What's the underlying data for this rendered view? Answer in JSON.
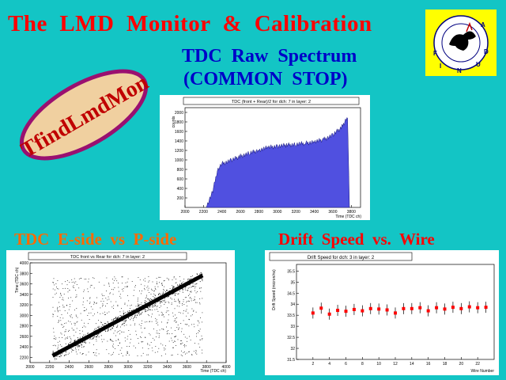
{
  "header": {
    "title": "The  LMD  Monitor  &  Calibration",
    "subtitle_line1": "TDC  Raw  Spectrum",
    "subtitle_line2": "(COMMON  STOP)"
  },
  "badge": {
    "text": "TfindLmdMon"
  },
  "logo": {
    "letters": [
      "F",
      "I",
      "N",
      "U",
      "D",
      "A"
    ]
  },
  "labels": {
    "left": "TDC  E-side  vs  P-side",
    "right": "Drift  Speed  vs.  Wire"
  },
  "colors": {
    "background": "#13c5c5",
    "title": "#ff0000",
    "subtitle": "#0000c8",
    "left_label": "#ff6a00",
    "histogram_fill": "#5050e0",
    "marker": "#ff0000"
  },
  "charts": {
    "raw": {
      "title": "TDC (front + Rear)/2 for dch: 7 in layer: 2",
      "ylabel": "counts",
      "xlabel": "Time (TDC ch)",
      "x_ticks": [
        "2000",
        "2200",
        "2400",
        "2600",
        "2800",
        "3000",
        "3200",
        "3400",
        "3600",
        "3800"
      ],
      "y_ticks": [
        "200",
        "400",
        "600",
        "800",
        "1000",
        "1200",
        "1400",
        "1600",
        "1800",
        "2000"
      ]
    },
    "scatter": {
      "title": "TDC front vs Rear for dch: 7 in layer: 2",
      "ylabel": "Time (TDC ch)",
      "xlabel": "Time (TDC ch)",
      "x_ticks": [
        "2000",
        "2200",
        "2400",
        "2600",
        "2800",
        "3000",
        "3200",
        "3400",
        "3600",
        "3800",
        "4000"
      ],
      "y_ticks": [
        "2200",
        "2400",
        "2600",
        "2800",
        "3000",
        "3200",
        "3400",
        "3600",
        "3800",
        "4000"
      ]
    },
    "drift": {
      "title": "Drift Speed for dch: 3 in layer: 2",
      "ylabel": "Drift Speed (micron/ns)",
      "xlabel": "Wire Number",
      "x_ticks": [
        "2",
        "4",
        "6",
        "8",
        "10",
        "12",
        "14",
        "16",
        "18",
        "20",
        "22"
      ],
      "y_ticks": [
        "31.5",
        "32",
        "32.5",
        "33",
        "33.5",
        "34",
        "34.5",
        "35",
        "35.5"
      ]
    }
  },
  "chart_data": [
    {
      "type": "area",
      "title": "TDC (front + Rear)/2 for dch: 7 in layer: 2",
      "xlabel": "Time (TDC ch)",
      "ylabel": "counts",
      "xlim": [
        2000,
        3900
      ],
      "ylim": [
        0,
        2100
      ],
      "x": [
        2230,
        2300,
        2350,
        2400,
        2500,
        2600,
        2700,
        2800,
        2900,
        3000,
        3100,
        3200,
        3300,
        3400,
        3500,
        3600,
        3700,
        3760,
        3780
      ],
      "values": [
        0,
        330,
        780,
        920,
        990,
        1080,
        1140,
        1210,
        1260,
        1290,
        1310,
        1330,
        1350,
        1380,
        1430,
        1520,
        1700,
        1920,
        0
      ]
    },
    {
      "type": "scatter",
      "title": "TDC front vs Rear for dch: 7 in layer: 2",
      "xlabel": "Time (TDC ch)",
      "ylabel": "Time (TDC ch)",
      "xlim": [
        2000,
        4000
      ],
      "ylim": [
        2100,
        4000
      ],
      "band": {
        "x": [
          2230,
          3760
        ],
        "y": [
          2230,
          3760
        ]
      }
    },
    {
      "type": "scatter",
      "title": "Drift Speed for dch: 3 in layer: 2",
      "xlabel": "Wire Number",
      "ylabel": "Drift Speed (micron/ns)",
      "xlim": [
        0,
        24
      ],
      "ylim": [
        31.5,
        35.8
      ],
      "x": [
        2,
        3,
        4,
        5,
        6,
        7,
        8,
        9,
        10,
        11,
        12,
        13,
        14,
        15,
        16,
        17,
        18,
        19,
        20,
        21,
        22,
        23
      ],
      "values": [
        33.6,
        33.82,
        33.55,
        33.72,
        33.68,
        33.76,
        33.7,
        33.8,
        33.78,
        33.74,
        33.6,
        33.8,
        33.8,
        33.84,
        33.7,
        33.84,
        33.78,
        33.86,
        33.8,
        33.88,
        33.84,
        33.86
      ]
    }
  ]
}
